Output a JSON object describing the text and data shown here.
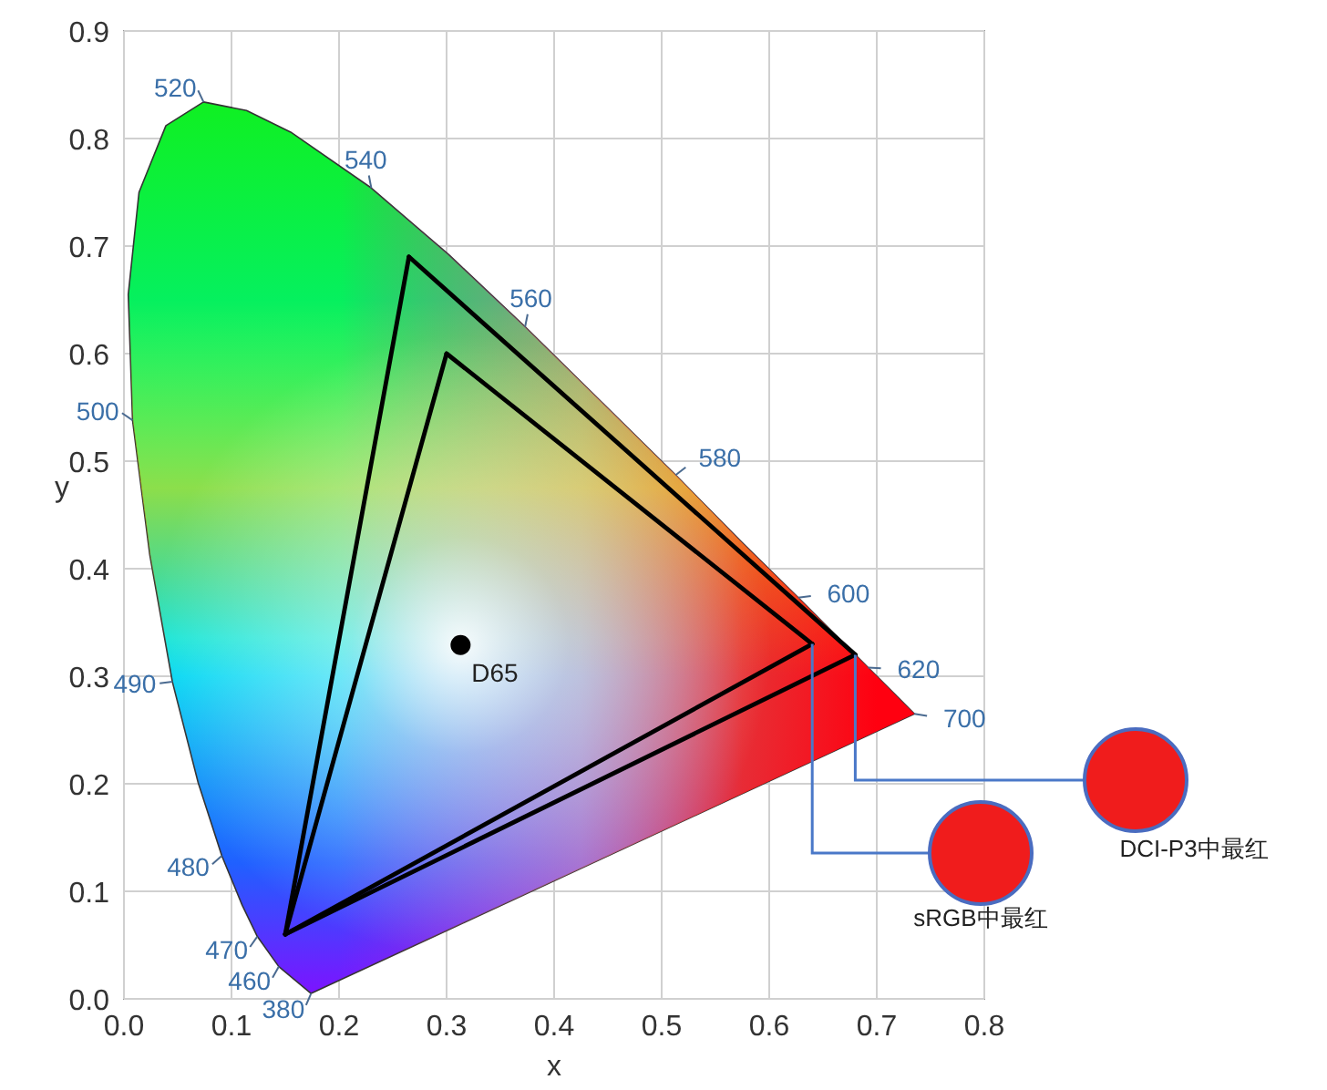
{
  "chart_data": {
    "type": "line",
    "xlabel": "x",
    "ylabel": "y",
    "xlim": [
      0,
      0.8
    ],
    "ylim": [
      0,
      0.9
    ],
    "xticks": [
      {
        "value": 0,
        "label": "0.0"
      },
      0.1,
      0.2,
      0.3,
      0.4,
      0.5,
      0.6,
      0.7,
      0.8
    ],
    "yticks": [
      {
        "value": 0,
        "label": "0.0"
      },
      0.1,
      0.2,
      0.3,
      0.4,
      0.5,
      0.6,
      0.7,
      0.8,
      0.9
    ],
    "grid": true,
    "series": [
      {
        "type": "area",
        "color": "#333333",
        "x": [
          0.174,
          0.144,
          0.124,
          0.11,
          0.091,
          0.069,
          0.045,
          0.024,
          0.008,
          0.004,
          0.014,
          0.039,
          0.074,
          0.114,
          0.155,
          0.23,
          0.302,
          0.373,
          0.444,
          0.513,
          0.575,
          0.627,
          0.666,
          0.692,
          0.719,
          0.735,
          0.174
        ],
        "values": [
          0.005,
          0.03,
          0.058,
          0.087,
          0.133,
          0.201,
          0.295,
          0.413,
          0.538,
          0.655,
          0.75,
          0.812,
          0.834,
          0.826,
          0.806,
          0.754,
          0.692,
          0.625,
          0.555,
          0.487,
          0.424,
          0.373,
          0.334,
          0.308,
          0.281,
          0.265,
          0.005
        ]
      },
      {
        "color": "#000000",
        "x": [
          0.15,
          0.265
        ],
        "values": [
          0.06,
          0.69
        ]
      },
      {
        "color": "#000000",
        "x": [
          0.265,
          0.68
        ],
        "values": [
          0.69,
          0.32
        ]
      },
      {
        "color": "#000000",
        "x": [
          0.15,
          0.68
        ],
        "values": [
          0.06,
          0.32
        ]
      },
      {
        "color": "#000000",
        "x": [
          0.15,
          0.3
        ],
        "values": [
          0.06,
          0.6
        ]
      },
      {
        "color": "#000000",
        "x": [
          0.3,
          0.64
        ],
        "values": [
          0.6,
          0.33
        ]
      },
      {
        "color": "#000000",
        "x": [
          0.15,
          0.64
        ],
        "values": [
          0.06,
          0.33
        ]
      },
      {
        "type": "scatter",
        "name": "D65",
        "color": "#000000",
        "marker": "circle",
        "x": [
          0.313
        ],
        "values": [
          0.329
        ]
      }
    ],
    "annotations": [
      {
        "text": "520",
        "x": 0.074,
        "y": 0.834
      },
      {
        "text": "540",
        "x": 0.23,
        "y": 0.754
      },
      {
        "text": "560",
        "x": 0.373,
        "y": 0.625
      },
      {
        "text": "580",
        "x": 0.513,
        "y": 0.487
      },
      {
        "text": "600",
        "x": 0.627,
        "y": 0.373
      },
      {
        "text": "620",
        "x": 0.692,
        "y": 0.308
      },
      {
        "text": "700",
        "x": 0.735,
        "y": 0.265
      },
      {
        "text": "500",
        "x": 0.008,
        "y": 0.538
      },
      {
        "text": "490",
        "x": 0.045,
        "y": 0.295
      },
      {
        "text": "480",
        "x": 0.091,
        "y": 0.133
      },
      {
        "text": "470",
        "x": 0.124,
        "y": 0.058
      },
      {
        "text": "460",
        "x": 0.144,
        "y": 0.03
      },
      {
        "text": "380",
        "x": 0.174,
        "y": 0.005
      },
      "sRGB中最红",
      "DCI-P3中最红"
    ]
  }
}
